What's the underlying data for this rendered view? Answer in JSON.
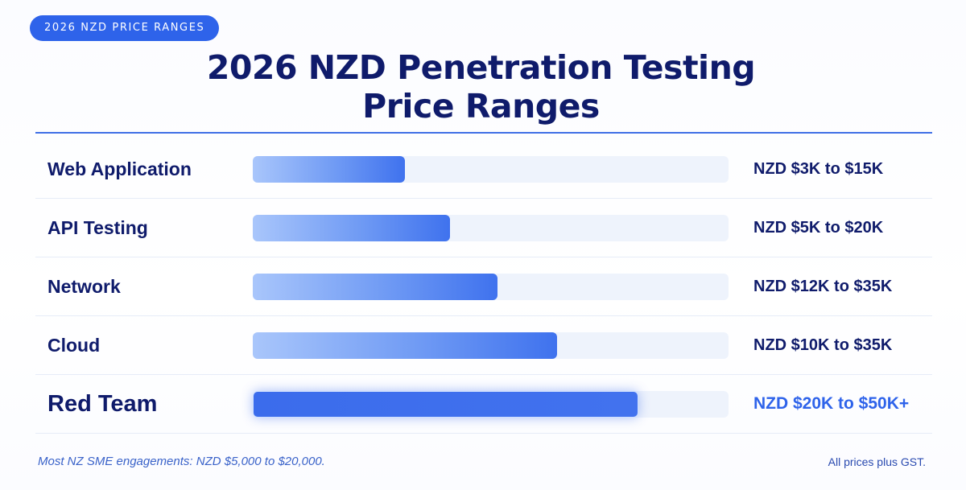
{
  "badge": "2026 NZD PRICE RANGES",
  "title_line1": "2026 NZD Penetration Testing",
  "title_line2": "Price Ranges",
  "chart_data": {
    "type": "bar",
    "orientation": "horizontal",
    "title": "2026 NZD Penetration Testing Price Ranges",
    "categories": [
      "Web Application",
      "API Testing",
      "Network",
      "Cloud",
      "Red Team"
    ],
    "value_labels": [
      "NZD $3K to $15K",
      "NZD $5K to $20K",
      "NZD $12K to $35K",
      "NZD $10K to $35K",
      "NZD $20K to $50K+"
    ],
    "values": [
      0.32,
      0.415,
      0.515,
      0.64,
      0.81
    ],
    "value_unit": "fraction of track",
    "highlight_index": 4,
    "colors": {
      "bar_gradient_start": "#a9c6fb",
      "bar_gradient_end": "#3f72ee",
      "highlight": "#3b6cec",
      "track": "#eef3fc",
      "text": "#0f1b6b",
      "accent": "#2e63ea"
    }
  },
  "footnotes": {
    "left": "Most NZ SME engagements: NZD $5,000 to $20,000.",
    "right": "All prices plus GST."
  }
}
